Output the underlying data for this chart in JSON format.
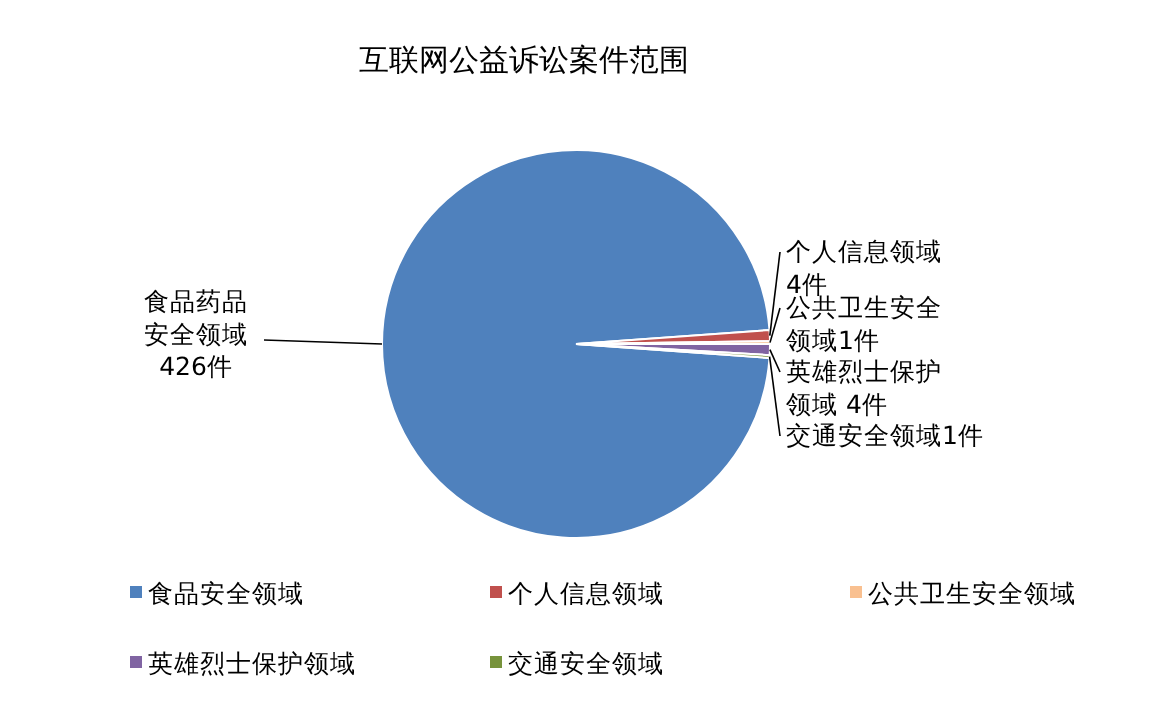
{
  "chart_data": {
    "type": "pie",
    "title": "互联网公益诉讼案件范围",
    "categories": [
      "食品安全领域",
      "个人信息领域",
      "公共卫生安全领域",
      "英雄烈士保护领域",
      "交通安全领域"
    ],
    "values": [
      426,
      4,
      1,
      4,
      1
    ],
    "colors": [
      "#4f81bd",
      "#c0504d",
      "#f9c090",
      "#8064a2",
      "#77933c"
    ],
    "value_labels": [
      "食品药品安全领域426件",
      "个人信息领域4件",
      "公共卫生安全领域1件",
      "英雄烈士保护领域 4件",
      "交通安全领域1件"
    ],
    "legend": "bottom"
  }
}
